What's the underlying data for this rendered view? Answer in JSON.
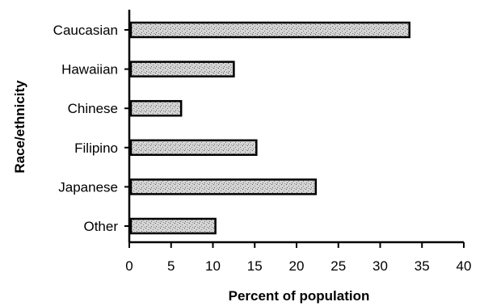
{
  "chart_data": {
    "type": "bar",
    "orientation": "horizontal",
    "title": "",
    "xlabel": "Percent of population",
    "ylabel": "Race/ethnicity",
    "categories": [
      "Caucasian",
      "Hawaiian",
      "Chinese",
      "Filipino",
      "Japanese",
      "Other"
    ],
    "values": [
      33.5,
      12.5,
      6.2,
      15.2,
      22.3,
      10.3
    ],
    "xlim": [
      0,
      40
    ],
    "xticks": [
      "0",
      "5",
      "10",
      "15",
      "20",
      "25",
      "30",
      "35",
      "40"
    ],
    "grid": false,
    "legend": "none",
    "colors": {
      "bar_fill": "#c8c8c8",
      "bar_stroke": "#000000",
      "axis": "#000000"
    }
  }
}
